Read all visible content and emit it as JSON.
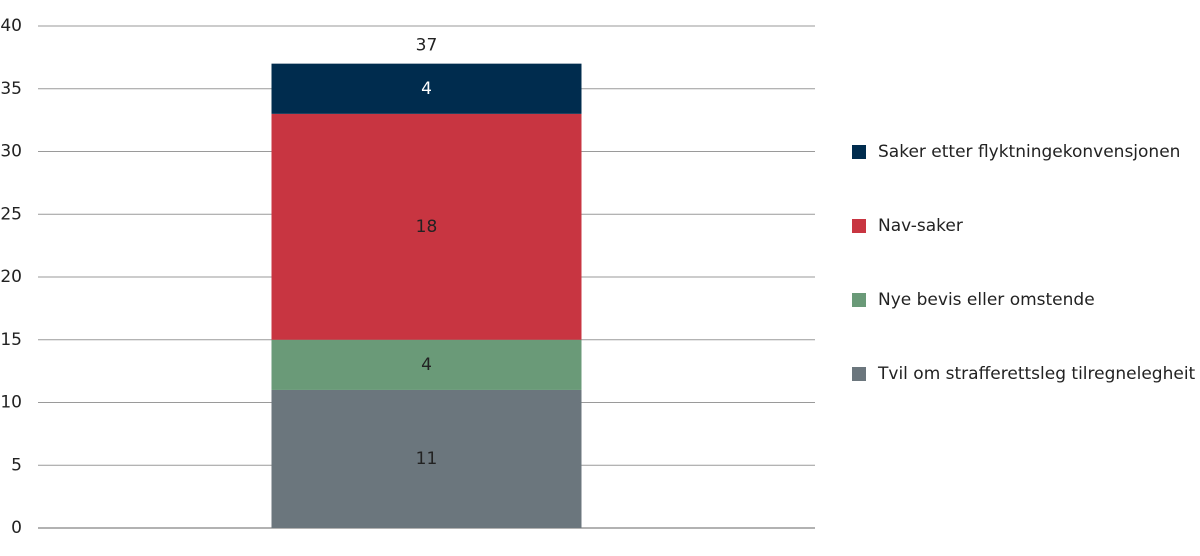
{
  "chart_data": {
    "type": "stacked-bar",
    "categories": [
      null
    ],
    "series": [
      {
        "name": "Tvil om strafferettsleg tilregnelegheit",
        "color": "#6b767d",
        "values": [
          11
        ]
      },
      {
        "name": "Nye bevis eller omstende",
        "color": "#6a9a78",
        "values": [
          4
        ]
      },
      {
        "name": "Nav-saker",
        "color": "#c83541",
        "values": [
          18
        ]
      },
      {
        "name": "Saker etter flyktningekonvensjonen",
        "color": "#002c4e",
        "values": [
          4
        ]
      }
    ],
    "totals": [
      37
    ],
    "ylim": [
      0,
      40
    ],
    "yticks": [
      0,
      5,
      10,
      15,
      20,
      25,
      30,
      35,
      40
    ],
    "grid": true,
    "legend": "right"
  }
}
